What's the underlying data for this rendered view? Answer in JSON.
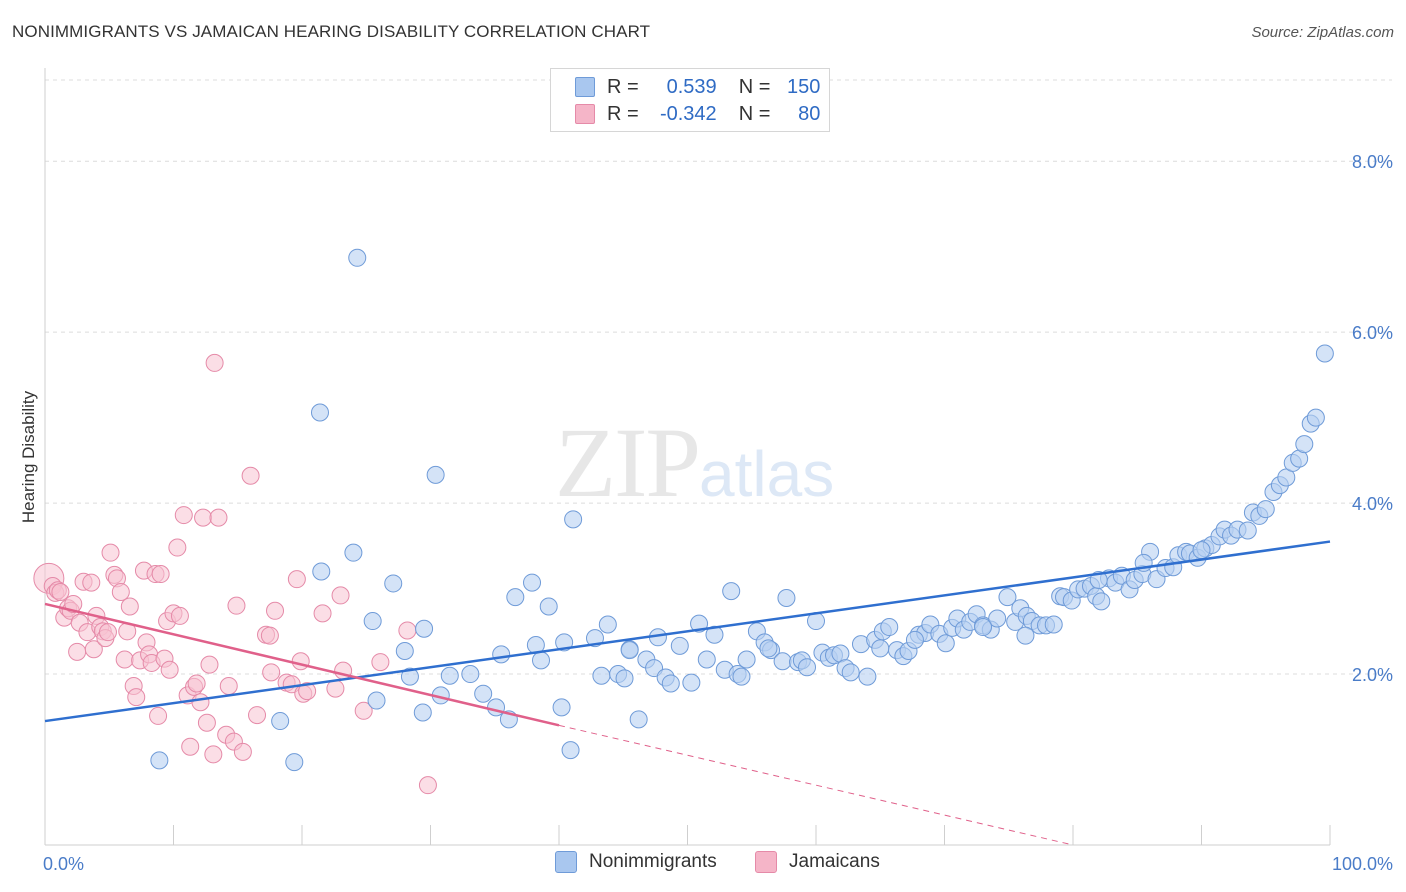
{
  "header": {
    "title": "NONIMMIGRANTS VS JAMAICAN HEARING DISABILITY CORRELATION CHART",
    "source": "Source: ZipAtlas.com"
  },
  "watermark": {
    "zip": "ZIP",
    "atlas": "atlas"
  },
  "legend": {
    "rows": [
      {
        "r_label": "R =",
        "r_value": "0.539",
        "n_label": "N =",
        "n_value": "150",
        "color": "#a9c7ef"
      },
      {
        "r_label": "R =",
        "r_value": "-0.342",
        "n_label": "N =",
        "n_value": "80",
        "color": "#f5b5c8"
      }
    ]
  },
  "bottom_legend": [
    {
      "label": "Nonimmigrants",
      "color": "#a9c7ef"
    },
    {
      "label": "Jamaicans",
      "color": "#f5b5c8"
    }
  ],
  "colors": {
    "blue_point_fill": "#b8d0f2",
    "blue_point_stroke": "#6f9bd8",
    "blue_line": "#2f6fcf",
    "pink_point_fill": "#f7c3d2",
    "pink_point_stroke": "#e58aa8",
    "pink_line": "#e0608a",
    "grid": "#dcdcdc",
    "tick_label": "#4a7cc8"
  },
  "chart_data": {
    "type": "scatter",
    "title": "NONIMMIGRANTS VS JAMAICAN HEARING DISABILITY CORRELATION CHART",
    "xlabel": "",
    "ylabel": "Hearing Disability",
    "xlim": [
      0,
      100
    ],
    "ylim": [
      0,
      8.0
    ],
    "x_tick_labels": [
      "0.0%",
      "100.0%"
    ],
    "y_ticks": [
      2.0,
      4.0,
      6.0,
      8.0
    ],
    "y_tick_labels": [
      "2.0%",
      "4.0%",
      "6.0%",
      "8.0%"
    ],
    "grid": true,
    "legend_placement": "top-center",
    "series": [
      {
        "name": "Nonimmigrants",
        "trend": {
          "x": [
            0,
            100
          ],
          "y": [
            1.45,
            3.55
          ],
          "style": "solid"
        },
        "points": [
          [
            8.9,
            0.99
          ],
          [
            19.4,
            0.97
          ],
          [
            24.3,
            6.87
          ],
          [
            21.4,
            5.06
          ],
          [
            30.4,
            4.33
          ],
          [
            18.3,
            1.45
          ],
          [
            24.0,
            3.42
          ],
          [
            21.5,
            3.2
          ],
          [
            25.5,
            2.62
          ],
          [
            25.8,
            1.69
          ],
          [
            27.1,
            3.06
          ],
          [
            28.0,
            2.27
          ],
          [
            28.4,
            1.97
          ],
          [
            29.5,
            2.53
          ],
          [
            29.4,
            1.55
          ],
          [
            30.8,
            1.75
          ],
          [
            31.5,
            1.98
          ],
          [
            33.1,
            2.0
          ],
          [
            34.1,
            1.77
          ],
          [
            35.1,
            1.61
          ],
          [
            35.5,
            2.23
          ],
          [
            36.1,
            1.47
          ],
          [
            36.6,
            2.9
          ],
          [
            37.9,
            3.07
          ],
          [
            38.2,
            2.34
          ],
          [
            38.6,
            2.16
          ],
          [
            39.2,
            2.79
          ],
          [
            40.2,
            1.61
          ],
          [
            40.4,
            2.37
          ],
          [
            40.9,
            1.11
          ],
          [
            41.1,
            3.81
          ],
          [
            42.8,
            2.42
          ],
          [
            43.3,
            1.98
          ],
          [
            43.8,
            2.58
          ],
          [
            44.6,
            2.0
          ],
          [
            45.1,
            1.95
          ],
          [
            45.5,
            2.29
          ],
          [
            46.2,
            1.47
          ],
          [
            46.8,
            2.17
          ],
          [
            47.4,
            2.07
          ],
          [
            47.7,
            2.43
          ],
          [
            48.3,
            1.96
          ],
          [
            48.7,
            1.89
          ],
          [
            49.4,
            2.33
          ],
          [
            50.3,
            1.9
          ],
          [
            50.9,
            2.59
          ],
          [
            51.5,
            2.17
          ],
          [
            52.1,
            2.46
          ],
          [
            52.9,
            2.05
          ],
          [
            53.4,
            2.97
          ],
          [
            53.9,
            2.0
          ],
          [
            54.2,
            1.97
          ],
          [
            54.6,
            2.17
          ],
          [
            55.4,
            2.5
          ],
          [
            56.0,
            2.37
          ],
          [
            56.5,
            2.28
          ],
          [
            57.4,
            2.15
          ],
          [
            57.7,
            2.89
          ],
          [
            58.6,
            2.14
          ],
          [
            58.9,
            2.16
          ],
          [
            59.3,
            2.08
          ],
          [
            60.0,
            2.62
          ],
          [
            60.5,
            2.25
          ],
          [
            61.0,
            2.19
          ],
          [
            61.4,
            2.22
          ],
          [
            61.9,
            2.24
          ],
          [
            62.3,
            2.07
          ],
          [
            62.7,
            2.02
          ],
          [
            63.5,
            2.35
          ],
          [
            64.0,
            1.97
          ],
          [
            64.6,
            2.4
          ],
          [
            65.2,
            2.5
          ],
          [
            65.7,
            2.55
          ],
          [
            66.3,
            2.28
          ],
          [
            66.8,
            2.21
          ],
          [
            67.2,
            2.27
          ],
          [
            68.0,
            2.46
          ],
          [
            68.5,
            2.48
          ],
          [
            68.9,
            2.58
          ],
          [
            69.6,
            2.47
          ],
          [
            70.1,
            2.36
          ],
          [
            70.6,
            2.54
          ],
          [
            71.0,
            2.65
          ],
          [
            71.5,
            2.52
          ],
          [
            72.0,
            2.61
          ],
          [
            72.5,
            2.7
          ],
          [
            73.0,
            2.57
          ],
          [
            73.6,
            2.52
          ],
          [
            74.1,
            2.65
          ],
          [
            74.9,
            2.9
          ],
          [
            75.5,
            2.61
          ],
          [
            75.9,
            2.77
          ],
          [
            76.4,
            2.68
          ],
          [
            76.8,
            2.62
          ],
          [
            77.4,
            2.57
          ],
          [
            77.9,
            2.57
          ],
          [
            78.5,
            2.58
          ],
          [
            79.0,
            2.91
          ],
          [
            79.3,
            2.9
          ],
          [
            79.9,
            2.86
          ],
          [
            80.4,
            2.99
          ],
          [
            80.9,
            3.0
          ],
          [
            81.4,
            3.03
          ],
          [
            81.8,
            2.91
          ],
          [
            82.2,
            2.85
          ],
          [
            82.8,
            3.12
          ],
          [
            83.3,
            3.07
          ],
          [
            83.8,
            3.15
          ],
          [
            84.4,
            2.99
          ],
          [
            84.8,
            3.1
          ],
          [
            85.4,
            3.17
          ],
          [
            86.0,
            3.43
          ],
          [
            86.5,
            3.11
          ],
          [
            87.2,
            3.24
          ],
          [
            87.8,
            3.25
          ],
          [
            88.2,
            3.39
          ],
          [
            88.8,
            3.43
          ],
          [
            89.1,
            3.41
          ],
          [
            89.7,
            3.36
          ],
          [
            90.3,
            3.47
          ],
          [
            90.8,
            3.51
          ],
          [
            91.4,
            3.61
          ],
          [
            91.8,
            3.69
          ],
          [
            92.3,
            3.62
          ],
          [
            92.8,
            3.69
          ],
          [
            93.6,
            3.68
          ],
          [
            94.0,
            3.89
          ],
          [
            94.5,
            3.85
          ],
          [
            95.0,
            3.93
          ],
          [
            95.6,
            4.13
          ],
          [
            96.1,
            4.21
          ],
          [
            96.6,
            4.3
          ],
          [
            97.1,
            4.47
          ],
          [
            97.6,
            4.52
          ],
          [
            98.0,
            4.69
          ],
          [
            98.5,
            4.93
          ],
          [
            98.9,
            5.0
          ],
          [
            99.6,
            5.75
          ],
          [
            45.5,
            2.28
          ],
          [
            56.3,
            2.3
          ],
          [
            67.7,
            2.4
          ],
          [
            76.3,
            2.45
          ],
          [
            85.5,
            3.3
          ],
          [
            65.0,
            2.3
          ],
          [
            73.0,
            2.55
          ],
          [
            82.0,
            3.1
          ],
          [
            90.0,
            3.45
          ]
        ]
      },
      {
        "name": "Jamaicans",
        "trend": {
          "x": [
            0,
            40
          ],
          "y": [
            2.82,
            1.4
          ],
          "style": "solid",
          "dashed_extension": {
            "x": [
              40,
              80
            ],
            "y": [
              1.4,
              0.0
            ]
          }
        },
        "points": [
          [
            0.3,
            3.12
          ],
          [
            0.6,
            3.03
          ],
          [
            0.8,
            2.95
          ],
          [
            1.0,
            2.98
          ],
          [
            1.2,
            2.96
          ],
          [
            1.5,
            2.66
          ],
          [
            1.8,
            2.77
          ],
          [
            2.0,
            2.74
          ],
          [
            2.2,
            2.82
          ],
          [
            2.5,
            2.26
          ],
          [
            2.7,
            2.6
          ],
          [
            3.0,
            3.08
          ],
          [
            3.3,
            2.49
          ],
          [
            3.6,
            3.07
          ],
          [
            3.8,
            2.29
          ],
          [
            4.0,
            2.68
          ],
          [
            4.3,
            2.55
          ],
          [
            4.5,
            2.5
          ],
          [
            4.7,
            2.42
          ],
          [
            4.9,
            2.49
          ],
          [
            5.1,
            3.42
          ],
          [
            5.4,
            3.16
          ],
          [
            5.6,
            3.12
          ],
          [
            5.9,
            2.96
          ],
          [
            6.2,
            2.17
          ],
          [
            6.4,
            2.5
          ],
          [
            6.6,
            2.79
          ],
          [
            6.9,
            1.86
          ],
          [
            7.1,
            1.73
          ],
          [
            7.4,
            2.16
          ],
          [
            7.7,
            3.21
          ],
          [
            7.9,
            2.37
          ],
          [
            8.1,
            2.23
          ],
          [
            8.3,
            2.13
          ],
          [
            8.6,
            3.17
          ],
          [
            8.8,
            1.51
          ],
          [
            9.0,
            3.17
          ],
          [
            9.3,
            2.18
          ],
          [
            9.5,
            2.62
          ],
          [
            9.7,
            2.05
          ],
          [
            10.0,
            2.71
          ],
          [
            10.3,
            3.48
          ],
          [
            10.5,
            2.68
          ],
          [
            10.8,
            3.86
          ],
          [
            11.1,
            1.75
          ],
          [
            11.3,
            1.15
          ],
          [
            11.6,
            1.85
          ],
          [
            11.8,
            1.89
          ],
          [
            12.1,
            1.67
          ],
          [
            12.3,
            3.83
          ],
          [
            12.6,
            1.43
          ],
          [
            12.8,
            2.11
          ],
          [
            13.1,
            1.06
          ],
          [
            13.2,
            5.64
          ],
          [
            13.5,
            3.83
          ],
          [
            14.1,
            1.29
          ],
          [
            14.3,
            1.86
          ],
          [
            14.7,
            1.21
          ],
          [
            14.9,
            2.8
          ],
          [
            15.4,
            1.09
          ],
          [
            16.0,
            4.32
          ],
          [
            16.5,
            1.52
          ],
          [
            17.2,
            2.46
          ],
          [
            17.6,
            2.02
          ],
          [
            17.9,
            2.74
          ],
          [
            18.8,
            1.9
          ],
          [
            19.2,
            1.88
          ],
          [
            19.6,
            3.11
          ],
          [
            19.9,
            2.15
          ],
          [
            20.1,
            1.77
          ],
          [
            20.4,
            1.8
          ],
          [
            21.6,
            2.71
          ],
          [
            22.6,
            1.83
          ],
          [
            23.0,
            2.92
          ],
          [
            23.2,
            2.04
          ],
          [
            24.8,
            1.57
          ],
          [
            26.1,
            2.14
          ],
          [
            28.2,
            2.51
          ],
          [
            29.8,
            0.7
          ],
          [
            17.5,
            2.45
          ]
        ]
      }
    ]
  }
}
